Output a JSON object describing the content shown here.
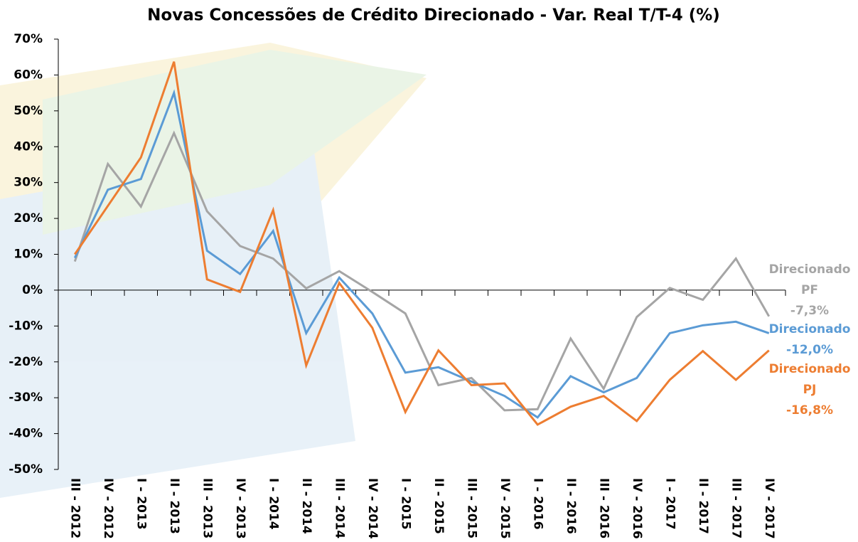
{
  "chart_data": {
    "type": "line",
    "title": "Novas Concessões de Crédito Direcionado - Var. Real T/T-4 (%)",
    "categories": [
      "III - 2012",
      "IV - 2012",
      "I - 2013",
      "II - 2013",
      "III - 2013",
      "IV - 2013",
      "I - 2014",
      "II - 2014",
      "III - 2014",
      "IV - 2014",
      "I - 2015",
      "II - 2015",
      "III - 2015",
      "IV - 2015",
      "I - 2016",
      "II - 2016",
      "III - 2016",
      "IV - 2016",
      "I - 2017",
      "II - 2017",
      "III - 2017",
      "IV - 2017"
    ],
    "series": [
      {
        "name": "Direcionado PF",
        "color": "#a5a5a5",
        "end_label": "-7,3%",
        "values": [
          8,
          35.2,
          23.3,
          43.8,
          22,
          12.3,
          8.8,
          0.5,
          5.3,
          -0.5,
          -6.5,
          -26.5,
          -24.5,
          -33.5,
          -33.2,
          -13.5,
          -27.5,
          -7.5,
          0.6,
          -2.7,
          8.8,
          -7.3
        ]
      },
      {
        "name": "Direcionado",
        "color": "#5b9bd5",
        "end_label": "-12,0%",
        "values": [
          9,
          28,
          31,
          55,
          11,
          4.5,
          16.5,
          -12,
          3.5,
          -6.5,
          -23,
          -21.5,
          -25.5,
          -29.5,
          -35.5,
          -24,
          -28.5,
          -24.5,
          -12,
          -9.8,
          -8.8,
          -12.0
        ]
      },
      {
        "name": "Direcionado PJ",
        "color": "#ed7d31",
        "end_label": "-16,8%",
        "values": [
          10,
          23.5,
          37,
          63.7,
          3,
          -0.5,
          22.3,
          -21,
          2,
          -10.5,
          -34,
          -16.8,
          -26.5,
          -26,
          -37.5,
          -32.5,
          -29.5,
          -36.5,
          -25,
          -17,
          -25,
          -16.8
        ]
      }
    ],
    "ylim": [
      -50,
      70
    ],
    "yticks": [
      {
        "value": -50,
        "label": "-50%"
      },
      {
        "value": -40,
        "label": "-40%"
      },
      {
        "value": -30,
        "label": "-30%"
      },
      {
        "value": -20,
        "label": "-20%"
      },
      {
        "value": -10,
        "label": "-10%"
      },
      {
        "value": 0,
        "label": "0%"
      },
      {
        "value": 10,
        "label": "10%"
      },
      {
        "value": 20,
        "label": "20%"
      },
      {
        "value": 30,
        "label": "30%"
      },
      {
        "value": 40,
        "label": "40%"
      },
      {
        "value": 50,
        "label": "50%"
      },
      {
        "value": 60,
        "label": "60%"
      },
      {
        "value": 70,
        "label": "70%"
      }
    ],
    "grid": false
  }
}
